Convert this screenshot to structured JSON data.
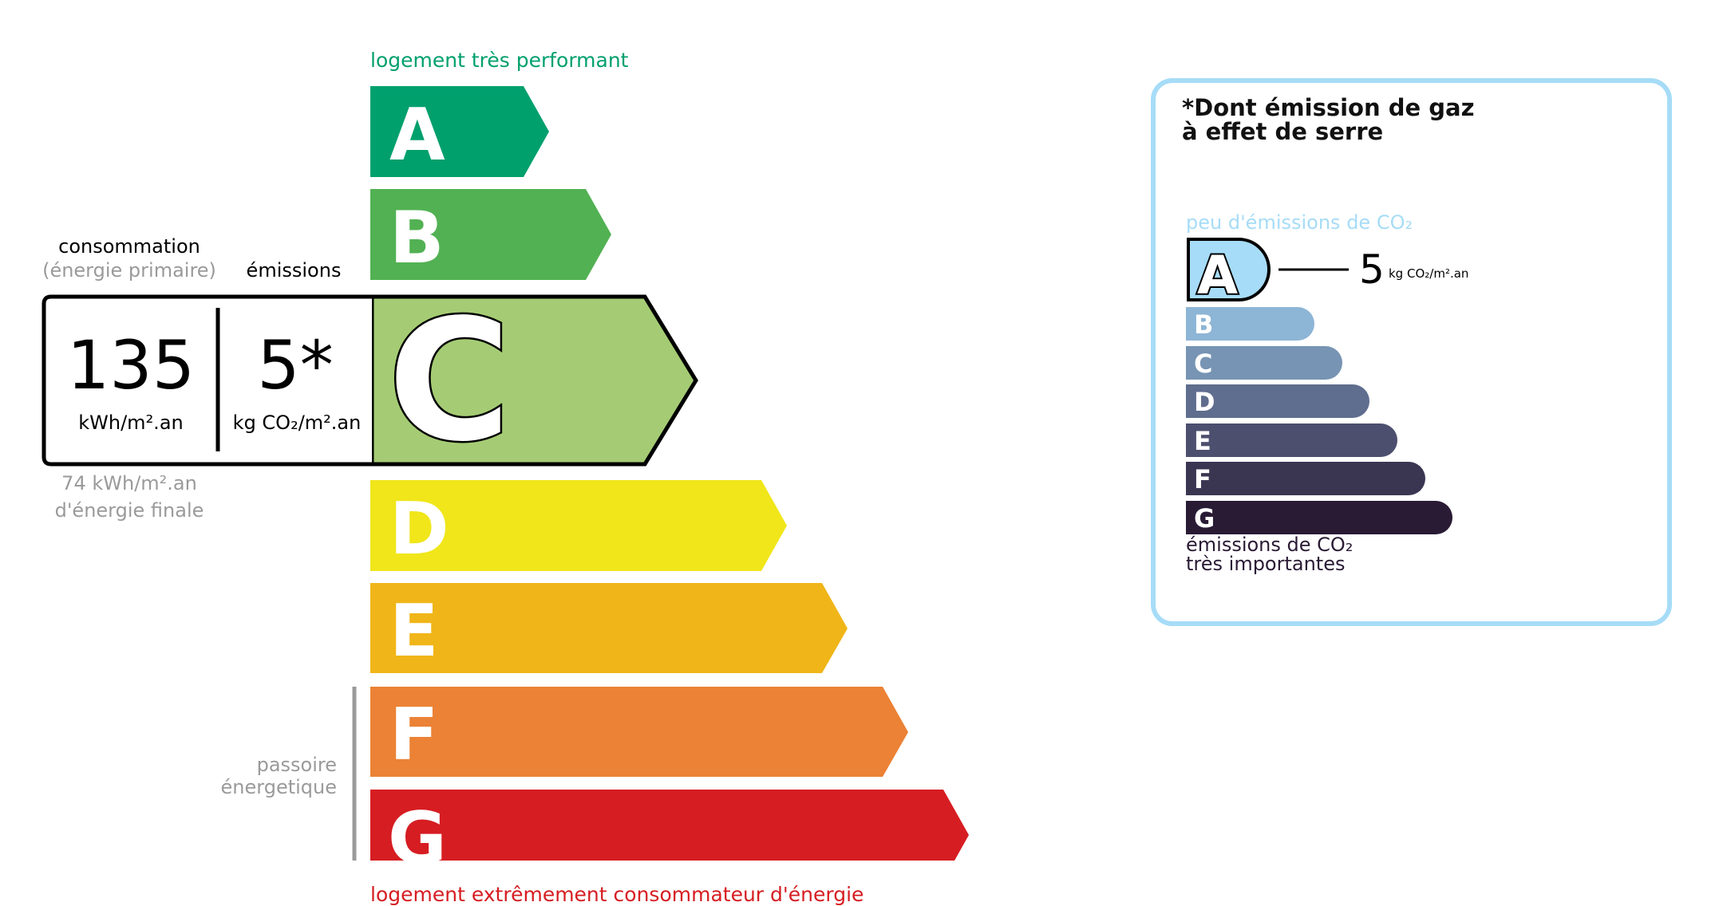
{
  "energy_label": {
    "top_label": "logement très performant",
    "bottom_label": "logement extrêmement consommateur d'énergie",
    "top_label_color": "#00a06d",
    "bottom_label_color": "#d61d22",
    "classes": [
      {
        "letter": "A",
        "color": "#00a06d"
      },
      {
        "letter": "B",
        "color": "#52b153"
      },
      {
        "letter": "C",
        "color": "#a5cc74"
      },
      {
        "letter": "D",
        "color": "#f0e61a"
      },
      {
        "letter": "E",
        "color": "#f0b518"
      },
      {
        "letter": "F",
        "color": "#eb8235"
      },
      {
        "letter": "G",
        "color": "#d61d22"
      }
    ],
    "current_class": "C",
    "consumption_header": "consommation",
    "consumption_subheader": "(énergie primaire)",
    "emissions_header": "émissions",
    "consumption_value": "135",
    "consumption_unit": "kWh/m².an",
    "emissions_value": "5*",
    "emissions_unit": "kg CO₂/m².an",
    "final_energy_value": "74 kWh/m².an",
    "final_energy_label": "d'énergie finale",
    "passoire_line1": "passoire",
    "passoire_line2": "énergetique"
  },
  "ghg_label": {
    "title_line1": "*Dont émission de gaz",
    "title_line2": "à effet de serre",
    "top_label": "peu d'émissions de CO₂",
    "bottom_line1": "émissions de CO₂",
    "bottom_line2": "très importantes",
    "border_color": "#a6dcf7",
    "current_class": "A",
    "value": "5",
    "unit": "kg CO₂/m².an",
    "classes": [
      {
        "letter": "A",
        "color": "#a6dcf7"
      },
      {
        "letter": "B",
        "color": "#8db5d6"
      },
      {
        "letter": "C",
        "color": "#7794b4"
      },
      {
        "letter": "D",
        "color": "#5f6d8e"
      },
      {
        "letter": "E",
        "color": "#4c4f6e"
      },
      {
        "letter": "F",
        "color": "#3a3652"
      },
      {
        "letter": "G",
        "color": "#2a1b35"
      }
    ]
  }
}
